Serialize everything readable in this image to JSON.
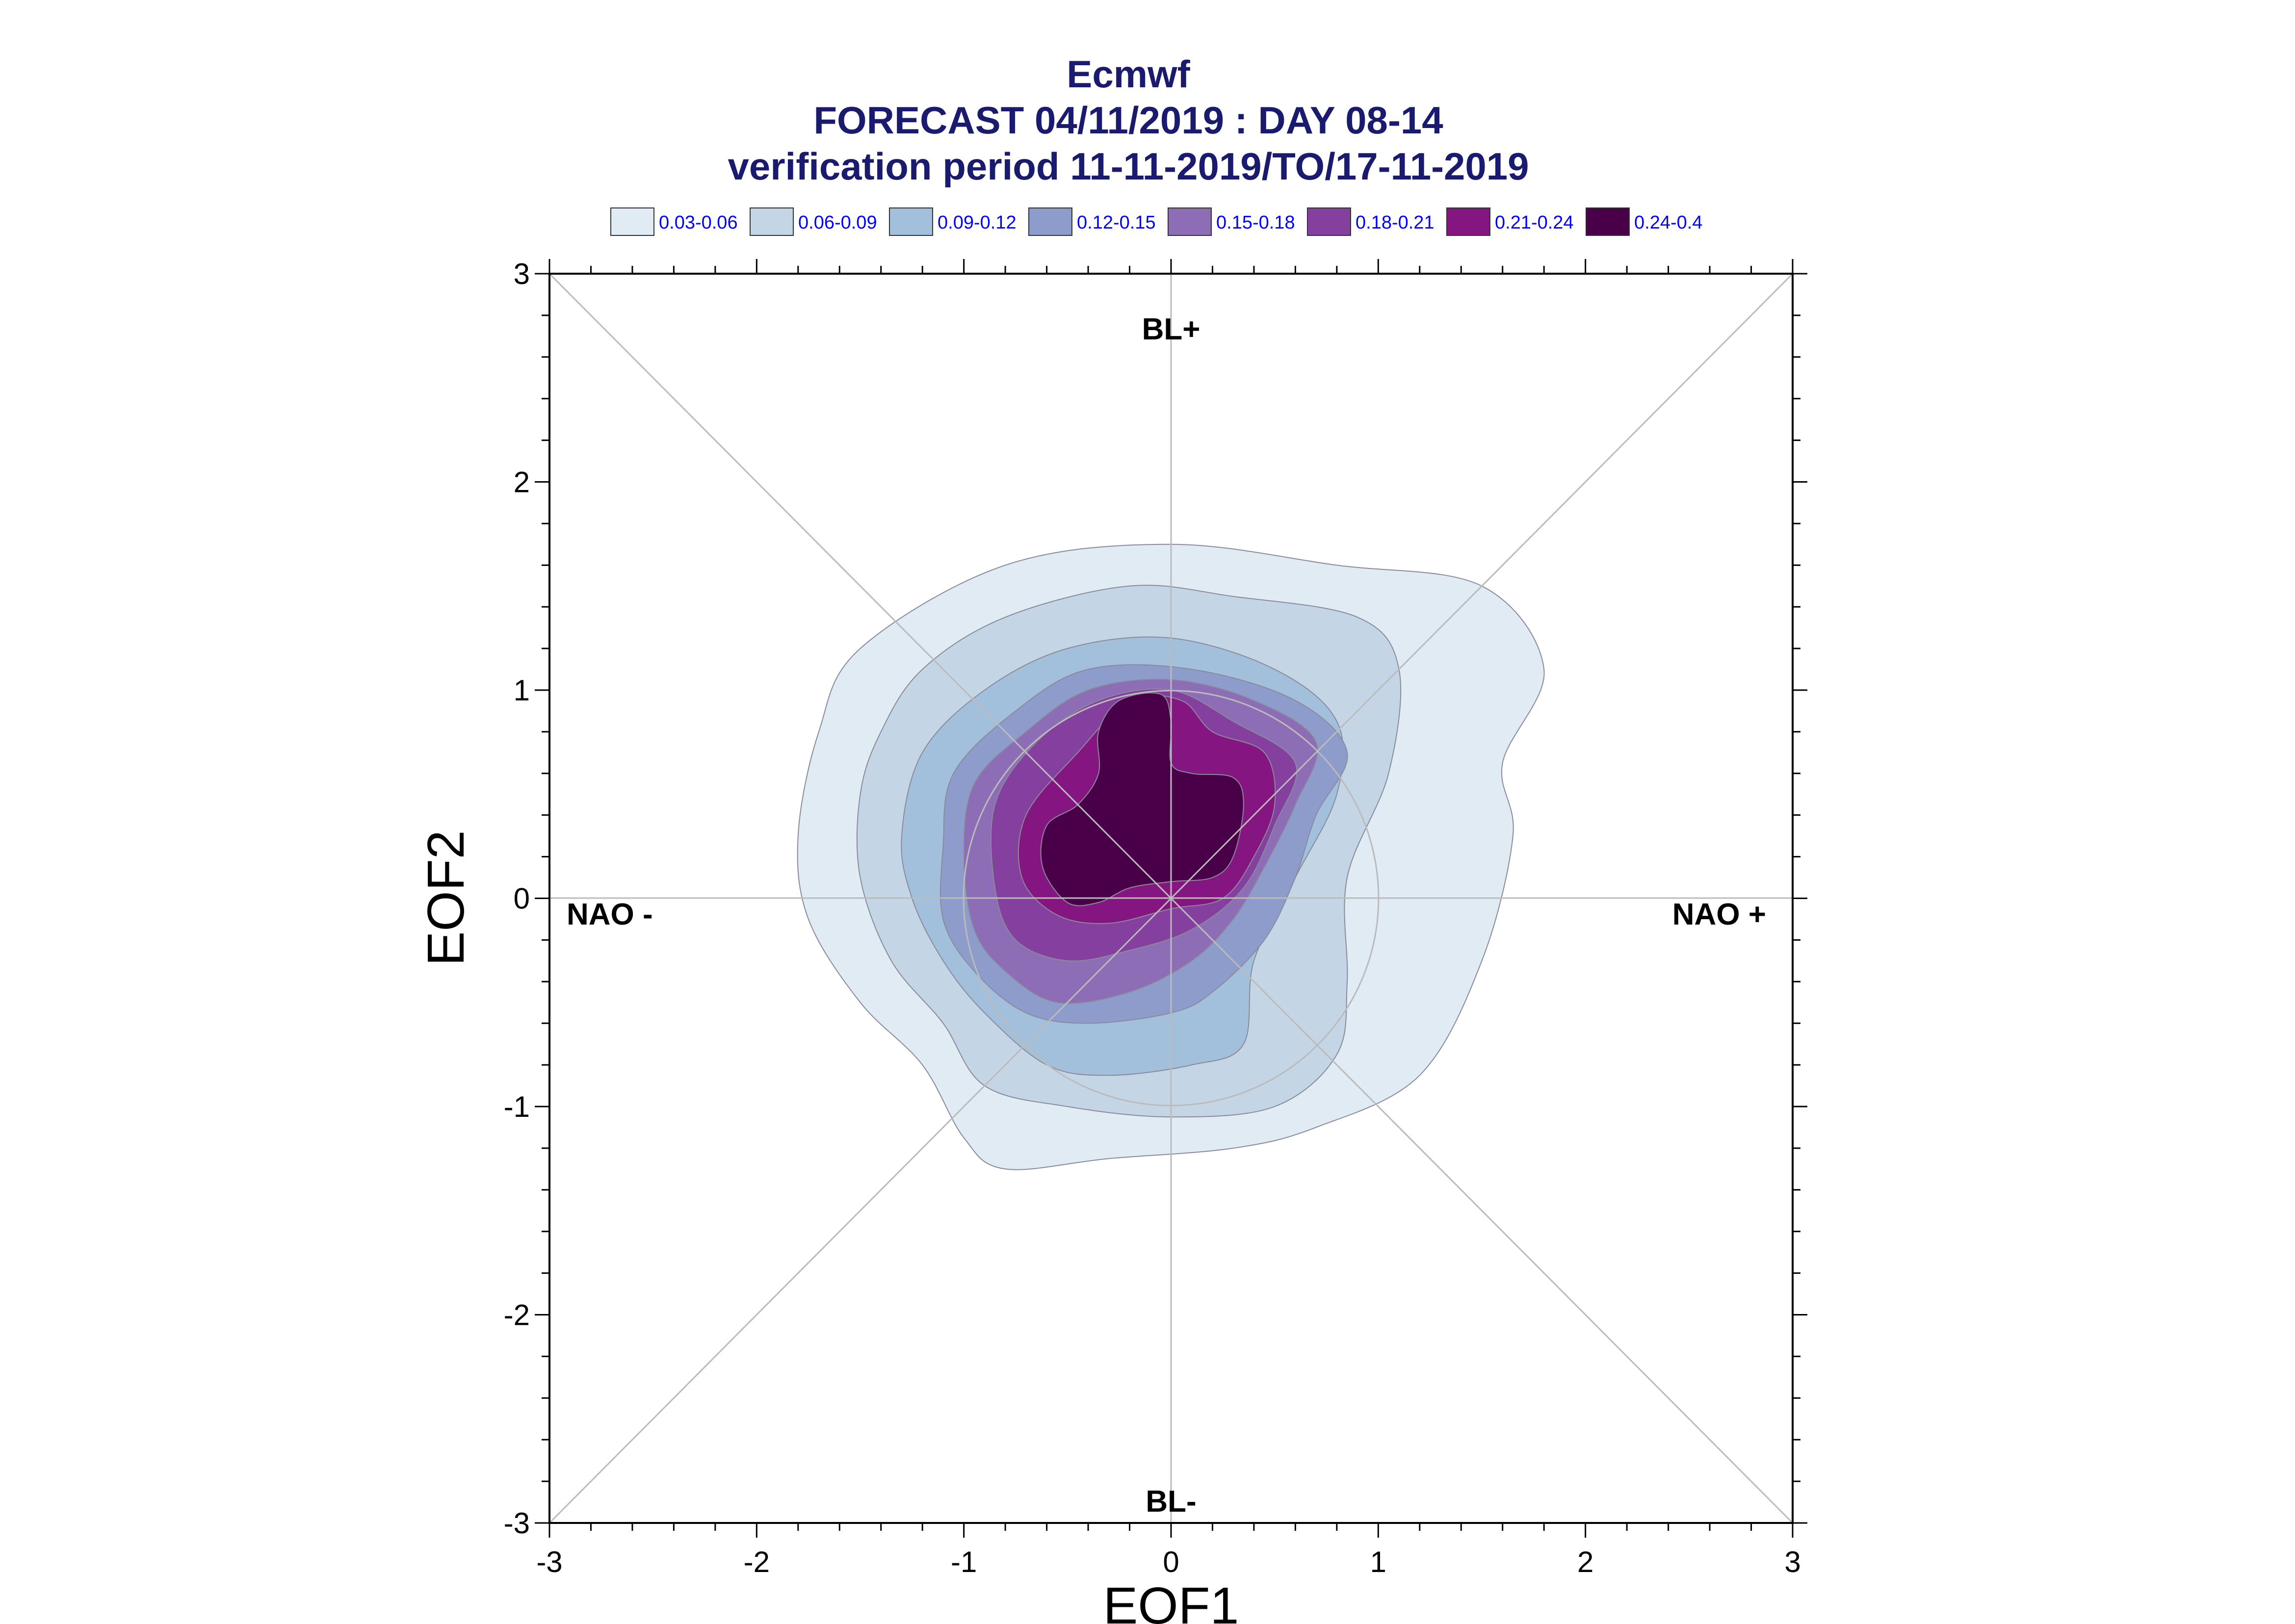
{
  "chart_data": {
    "type": "contour",
    "title_lines": [
      "Ecmwf",
      "FORECAST 04/11/2019 : DAY 08-14",
      "verification period 11-11-2019/TO/17-11-2019"
    ],
    "xlabel": "EOF1",
    "ylabel": "EOF2",
    "xlim": [
      -3,
      3
    ],
    "ylim": [
      -3,
      3
    ],
    "x_ticks": [
      "-3",
      "-2",
      "-1",
      "0",
      "1",
      "2",
      "3"
    ],
    "y_ticks": [
      "-3",
      "-2",
      "-1",
      "0",
      "1",
      "2",
      "3"
    ],
    "regions": {
      "top": "BL+",
      "bottom": "BL-",
      "left": "NAO -",
      "right": "NAO +"
    },
    "legend": [
      {
        "label": "0.03-0.06",
        "color": "#e0ebf4"
      },
      {
        "label": "0.06-0.09",
        "color": "#c4d6e6"
      },
      {
        "label": "0.09-0.12",
        "color": "#a2c0dc"
      },
      {
        "label": "0.12-0.15",
        "color": "#8e9ccc"
      },
      {
        "label": "0.15-0.18",
        "color": "#8d6db5"
      },
      {
        "label": "0.18-0.21",
        "color": "#853f9f"
      },
      {
        "label": "0.21-0.24",
        "color": "#851580"
      },
      {
        "label": "0.24-0.4",
        "color": "#4a0049"
      }
    ],
    "levels": [
      {
        "range": "0.03-0.06",
        "color": "#e0ebf4",
        "outline": [
          [
            -1.5,
            1.2
          ],
          [
            -0.8,
            1.6
          ],
          [
            0,
            1.7
          ],
          [
            0.8,
            1.6
          ],
          [
            1.5,
            1.5
          ],
          [
            1.8,
            1.1
          ],
          [
            1.6,
            0.65
          ],
          [
            1.65,
            0.3
          ],
          [
            1.5,
            -0.3
          ],
          [
            1.2,
            -0.85
          ],
          [
            0.7,
            -1.1
          ],
          [
            0.3,
            -1.2
          ],
          [
            -0.3,
            -1.25
          ],
          [
            -0.8,
            -1.3
          ],
          [
            -1.0,
            -1.15
          ],
          [
            -1.2,
            -0.8
          ],
          [
            -1.5,
            -0.5
          ],
          [
            -1.75,
            -0.1
          ],
          [
            -1.8,
            0.3
          ],
          [
            -1.7,
            0.8
          ]
        ]
      },
      {
        "range": "0.06-0.09",
        "color": "#c4d6e6",
        "outline": [
          [
            -1.4,
            0.8
          ],
          [
            -1.2,
            1.1
          ],
          [
            -0.8,
            1.35
          ],
          [
            -0.2,
            1.5
          ],
          [
            0.3,
            1.45
          ],
          [
            0.9,
            1.35
          ],
          [
            1.1,
            1.1
          ],
          [
            1.05,
            0.6
          ],
          [
            0.85,
            0.1
          ],
          [
            0.85,
            -0.4
          ],
          [
            0.8,
            -0.75
          ],
          [
            0.5,
            -1.0
          ],
          [
            0.0,
            -1.05
          ],
          [
            -0.5,
            -1.0
          ],
          [
            -0.9,
            -0.9
          ],
          [
            -1.1,
            -0.6
          ],
          [
            -1.35,
            -0.3
          ],
          [
            -1.5,
            0.1
          ],
          [
            -1.5,
            0.5
          ]
        ]
      },
      {
        "range": "0.09-0.12",
        "color": "#a2c0dc",
        "outline": [
          [
            -1.2,
            0.7
          ],
          [
            -0.9,
            1.0
          ],
          [
            -0.5,
            1.2
          ],
          [
            0,
            1.25
          ],
          [
            0.5,
            1.1
          ],
          [
            0.8,
            0.85
          ],
          [
            0.8,
            0.5
          ],
          [
            0.6,
            0.1
          ],
          [
            0.4,
            -0.3
          ],
          [
            0.35,
            -0.7
          ],
          [
            0.1,
            -0.8
          ],
          [
            -0.3,
            -0.85
          ],
          [
            -0.6,
            -0.8
          ],
          [
            -0.9,
            -0.55
          ],
          [
            -1.1,
            -0.3
          ],
          [
            -1.25,
            0.0
          ],
          [
            -1.3,
            0.3
          ]
        ]
      },
      {
        "range": "0.12-0.15",
        "color": "#8e9ccc",
        "outline": [
          [
            -1.05,
            0.6
          ],
          [
            -0.75,
            0.9
          ],
          [
            -0.4,
            1.1
          ],
          [
            0.1,
            1.1
          ],
          [
            0.6,
            0.95
          ],
          [
            0.85,
            0.7
          ],
          [
            0.7,
            0.4
          ],
          [
            0.6,
            0.1
          ],
          [
            0.45,
            -0.2
          ],
          [
            0.2,
            -0.45
          ],
          [
            0.0,
            -0.55
          ],
          [
            -0.4,
            -0.6
          ],
          [
            -0.7,
            -0.55
          ],
          [
            -0.95,
            -0.35
          ],
          [
            -1.1,
            -0.1
          ],
          [
            -1.1,
            0.25
          ]
        ]
      },
      {
        "range": "0.15-0.18",
        "color": "#8d6db5",
        "outline": [
          [
            -0.95,
            0.55
          ],
          [
            -0.7,
            0.8
          ],
          [
            -0.4,
            1.0
          ],
          [
            0.0,
            1.05
          ],
          [
            0.4,
            0.95
          ],
          [
            0.7,
            0.75
          ],
          [
            0.6,
            0.45
          ],
          [
            0.45,
            0.15
          ],
          [
            0.3,
            -0.1
          ],
          [
            0.1,
            -0.3
          ],
          [
            -0.2,
            -0.45
          ],
          [
            -0.55,
            -0.5
          ],
          [
            -0.8,
            -0.35
          ],
          [
            -0.95,
            -0.15
          ],
          [
            -1.0,
            0.2
          ]
        ]
      },
      {
        "range": "0.18-0.21",
        "color": "#853f9f",
        "outline": [
          [
            -0.85,
            0.45
          ],
          [
            -0.65,
            0.75
          ],
          [
            -0.35,
            0.95
          ],
          [
            0.0,
            1.0
          ],
          [
            0.3,
            0.85
          ],
          [
            0.6,
            0.65
          ],
          [
            0.5,
            0.35
          ],
          [
            0.35,
            0.05
          ],
          [
            0.1,
            -0.15
          ],
          [
            -0.2,
            -0.25
          ],
          [
            -0.5,
            -0.3
          ],
          [
            -0.75,
            -0.2
          ],
          [
            -0.85,
            0.05
          ]
        ]
      },
      {
        "range": "0.21-0.24",
        "color": "#851580",
        "outline": [
          [
            -0.7,
            0.4
          ],
          [
            -0.45,
            0.7
          ],
          [
            -0.2,
            0.95
          ],
          [
            0.05,
            0.95
          ],
          [
            0.2,
            0.8
          ],
          [
            0.45,
            0.7
          ],
          [
            0.5,
            0.45
          ],
          [
            0.4,
            0.2
          ],
          [
            0.25,
            0.0
          ],
          [
            0.0,
            -0.05
          ],
          [
            -0.3,
            -0.12
          ],
          [
            -0.55,
            -0.08
          ],
          [
            -0.72,
            0.1
          ]
        ]
      },
      {
        "range": "0.24-0.4",
        "color": "#4a0049",
        "outline": [
          [
            -0.6,
            0.35
          ],
          [
            -0.45,
            0.45
          ],
          [
            -0.35,
            0.6
          ],
          [
            -0.35,
            0.8
          ],
          [
            -0.25,
            0.95
          ],
          [
            -0.05,
            0.98
          ],
          [
            0.0,
            0.85
          ],
          [
            0.0,
            0.65
          ],
          [
            0.1,
            0.6
          ],
          [
            0.3,
            0.58
          ],
          [
            0.35,
            0.45
          ],
          [
            0.3,
            0.2
          ],
          [
            0.2,
            0.1
          ],
          [
            0.0,
            0.08
          ],
          [
            -0.2,
            0.05
          ],
          [
            -0.35,
            -0.02
          ],
          [
            -0.5,
            -0.02
          ],
          [
            -0.62,
            0.15
          ]
        ]
      }
    ]
  }
}
